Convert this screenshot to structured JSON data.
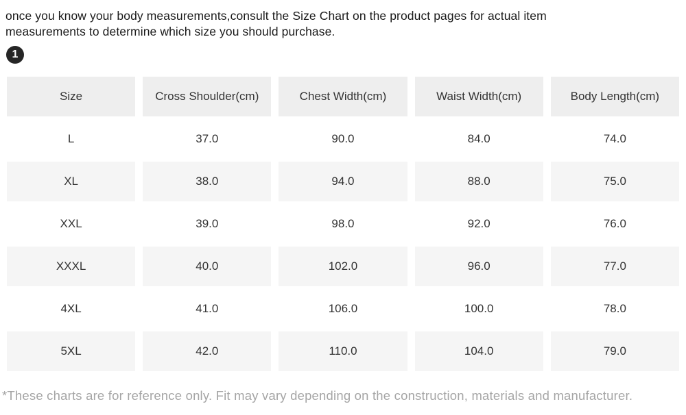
{
  "intro": {
    "text": "once you know your body measurements,consult the Size Chart on the product pages for actual item measurements to determine which size you should purchase."
  },
  "step_badge": {
    "label": "1"
  },
  "size_chart": {
    "columns": [
      "Size",
      "Cross Shoulder(cm)",
      "Chest Width(cm)",
      "Waist Width(cm)",
      "Body Length(cm)"
    ],
    "rows": [
      [
        "L",
        "37.0",
        "90.0",
        "84.0",
        "74.0"
      ],
      [
        "XL",
        "38.0",
        "94.0",
        "88.0",
        "75.0"
      ],
      [
        "XXL",
        "39.0",
        "98.0",
        "92.0",
        "76.0"
      ],
      [
        "XXXL",
        "40.0",
        "102.0",
        "96.0",
        "77.0"
      ],
      [
        "4XL",
        "41.0",
        "106.0",
        "100.0",
        "78.0"
      ],
      [
        "5XL",
        "42.0",
        "110.0",
        "104.0",
        "79.0"
      ]
    ]
  },
  "footnote": {
    "text": "*These charts are for reference only. Fit may vary depending on the construction, materials and manufacturer."
  },
  "colors": {
    "header_bg": "#eeeeee",
    "stripe_bg": "#f5f5f5",
    "table_text": "#333333",
    "intro_text": "#1b1b1b",
    "footnote_text": "#a5a5a5",
    "badge_bg": "#262626"
  }
}
